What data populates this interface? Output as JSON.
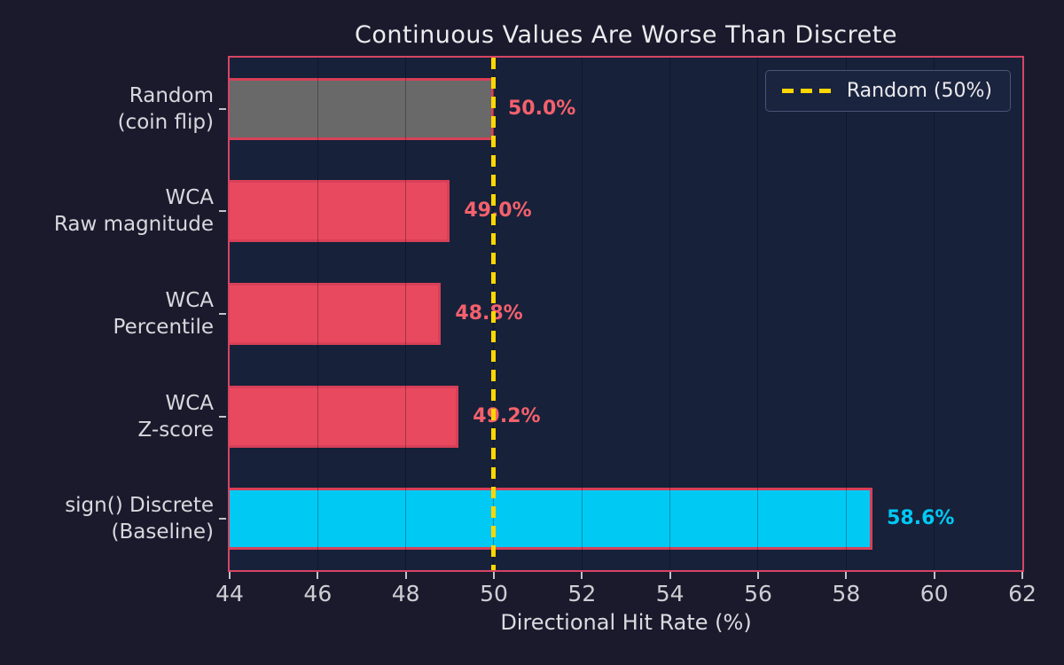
{
  "title": "Continuous Values Are Worse Than Discrete",
  "xlabel": "Directional Hit Rate (%)",
  "legend": {
    "label": "Random (50%)",
    "dash_color": "#ffd700",
    "position": "upper right"
  },
  "colors": {
    "figure_background": "#1b1a2d",
    "plot_background": "#17213a",
    "plot_border": "#d64563",
    "bar_edge": "#d84058",
    "random_bar": "#696969",
    "wca_bar": "#e8495f",
    "baseline_bar": "#00c9f4",
    "value_label_red": "#f4616c",
    "value_label_cyan": "#00c9f4",
    "reference_line": "#ffd700",
    "tick_text": "#cdced3",
    "title_text": "#ecebee"
  },
  "chart_data": {
    "type": "bar",
    "orientation": "horizontal",
    "title": "Continuous Values Are Worse Than Discrete",
    "xlabel": "Directional Hit Rate (%)",
    "ylabel": "",
    "xlim": [
      44,
      62
    ],
    "xticks": [
      44,
      46,
      48,
      50,
      52,
      54,
      56,
      58,
      60,
      62
    ],
    "grid": true,
    "legend_position": "upper right",
    "categories": [
      "Random (coin flip)",
      "WCA Raw magnitude",
      "WCA Percentile",
      "WCA Z-score",
      "sign() Discrete (Baseline)"
    ],
    "category_lines": [
      [
        "Random",
        "(coin flip)"
      ],
      [
        "WCA",
        "Raw magnitude"
      ],
      [
        "WCA",
        "Percentile"
      ],
      [
        "WCA",
        "Z-score"
      ],
      [
        "sign() Discrete",
        "(Baseline)"
      ]
    ],
    "values": [
      50.0,
      49.0,
      48.8,
      49.2,
      58.6
    ],
    "value_labels": [
      "50.0%",
      "49.0%",
      "48.8%",
      "49.2%",
      "58.6%"
    ],
    "bar_colors": [
      "#696969",
      "#e8495f",
      "#e8495f",
      "#e8495f",
      "#00c9f4"
    ],
    "value_label_colors": [
      "#f4616c",
      "#f4616c",
      "#f4616c",
      "#f4616c",
      "#00c9f4"
    ],
    "reference_line": {
      "x": 50,
      "label": "Random (50%)",
      "color": "#ffd700",
      "style": "dashed"
    }
  }
}
